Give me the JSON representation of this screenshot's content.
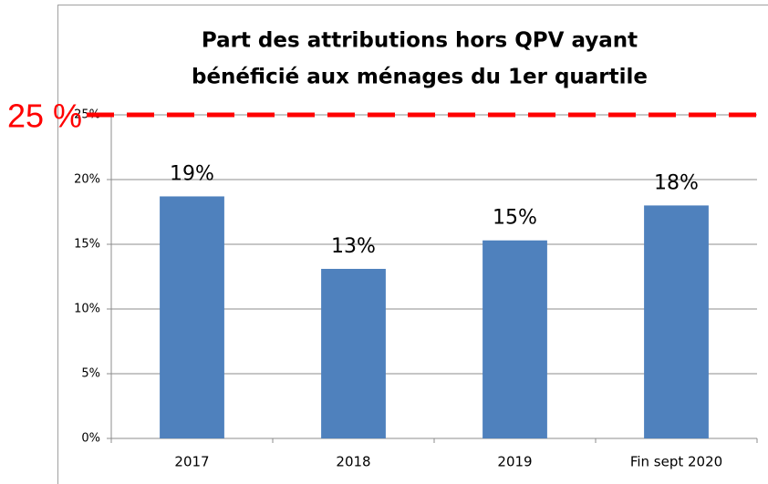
{
  "chart_data": {
    "type": "bar",
    "title": [
      "Part des attributions hors QPV ayant",
      "bénéficié aux ménages du 1er quartile"
    ],
    "categories": [
      "2017",
      "2018",
      "2019",
      "Fin sept 2020"
    ],
    "values": [
      18.7,
      13.1,
      15.3,
      18.0
    ],
    "value_labels": [
      "19%",
      "13%",
      "15%",
      "18%"
    ],
    "color": "#4f81bd",
    "ylim": [
      0,
      25
    ],
    "yticks": [
      {
        "value": 0,
        "label": "0%"
      },
      {
        "value": 5,
        "label": "5%"
      },
      {
        "value": 10,
        "label": "10%"
      },
      {
        "value": 15,
        "label": "15%"
      },
      {
        "value": 20,
        "label": "20%"
      },
      {
        "value": 25,
        "label": "25%"
      }
    ],
    "grid": true,
    "annotation": {
      "text": "25 %",
      "value": 25,
      "color": "#ff0000"
    }
  }
}
